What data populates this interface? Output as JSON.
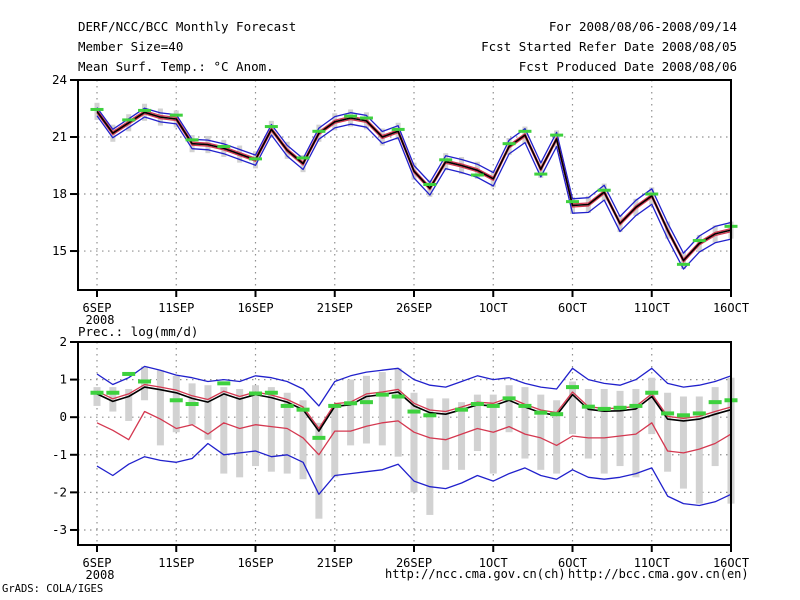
{
  "header": {
    "forecast_title": "DERF/NCC/BCC Monthly Forecast",
    "member_size_label": "Member Size=40",
    "valid_period": "For 2008/08/06-2008/09/14",
    "refer_date": "Fcst Started Refer Date 2008/08/05",
    "produced_date": "Fcst Produced Date 2008/08/06"
  },
  "footer": {
    "url_ch": "http://ncc.cma.gov.cn(ch)",
    "url_en": "http://bcc.cma.gov.cn(en)",
    "grads_credit": "GrADS: COLA/IGES"
  },
  "colors": {
    "mean_line": "#000000",
    "sigma_line": "#d43850",
    "extreme_line": "#2121cc",
    "obs_dash": "#3ed13e",
    "spread_bar": "#d2d2d2",
    "grid": "#909090",
    "frame": "#000000"
  },
  "chart_data": [
    {
      "type": "line",
      "title": "Mean Surf. Temp.: °C Anom.",
      "x_tick_labels": [
        "6SEP",
        "11SEP",
        "16SEP",
        "21SEP",
        "26SEP",
        "1OCT",
        "6OCT",
        "11OCT",
        "16OCT"
      ],
      "x_tick_days": [
        0,
        5,
        10,
        15,
        20,
        25,
        30,
        35,
        40
      ],
      "x_year_label": "2008",
      "y_tick_labels": [
        "24",
        "21",
        "18",
        "15"
      ],
      "y_tick_values": [
        24,
        21,
        18,
        15
      ],
      "grid_y": [
        21,
        18,
        15
      ],
      "ylim": [
        12.95,
        24
      ],
      "days_span": 40,
      "legend_position": "none",
      "series": {
        "mean": [
          22.35,
          21.2,
          21.75,
          22.3,
          22.05,
          21.95,
          20.65,
          20.6,
          20.4,
          20.1,
          19.8,
          21.4,
          20.3,
          19.6,
          21.2,
          21.8,
          22.0,
          21.85,
          21.0,
          21.3,
          19.2,
          18.3,
          19.7,
          19.5,
          19.25,
          18.8,
          20.5,
          21.1,
          19.3,
          20.9,
          17.4,
          17.45,
          18.1,
          16.45,
          17.3,
          17.9,
          16.1,
          14.5,
          15.4,
          15.9,
          16.1
        ],
        "obs": [
          22.45,
          null,
          21.9,
          22.4,
          null,
          22.15,
          20.85,
          null,
          20.5,
          null,
          19.85,
          21.55,
          null,
          19.9,
          21.3,
          null,
          22.1,
          22.0,
          null,
          21.4,
          null,
          18.5,
          19.8,
          null,
          19.0,
          null,
          20.65,
          21.3,
          19.05,
          21.1,
          17.6,
          null,
          18.2,
          null,
          null,
          18.0,
          null,
          14.3,
          15.55,
          null,
          16.3
        ]
      },
      "envelope": {
        "red_offset": 0.08,
        "blue_offset_base": 0.2,
        "blue_offset_growth": 0.005,
        "bar_offset": 0.45
      }
    },
    {
      "type": "line",
      "title": "Prec.: log(mm/d)",
      "x_tick_labels": [
        "6SEP",
        "11SEP",
        "16SEP",
        "21SEP",
        "26SEP",
        "1OCT",
        "6OCT",
        "11OCT",
        "16OCT"
      ],
      "x_tick_days": [
        0,
        5,
        10,
        15,
        20,
        25,
        30,
        35,
        40
      ],
      "x_year_label": "2008",
      "y_tick_labels": [
        "2",
        "1",
        "0",
        "-1",
        "-2",
        "-3"
      ],
      "y_tick_values": [
        2,
        1,
        0,
        -1,
        -2,
        -3
      ],
      "grid_y": [
        1,
        0,
        -1,
        -2,
        -3
      ],
      "ylim": [
        -3.4,
        2
      ],
      "days_span": 40,
      "legend_position": "none",
      "series": {
        "mean": [
          0.62,
          0.42,
          0.55,
          0.8,
          0.73,
          0.65,
          0.5,
          0.4,
          0.62,
          0.48,
          0.6,
          0.52,
          0.4,
          0.2,
          -0.37,
          0.29,
          0.33,
          0.55,
          0.6,
          0.67,
          0.3,
          0.12,
          0.08,
          0.2,
          0.33,
          0.3,
          0.45,
          0.27,
          0.12,
          0.05,
          0.6,
          0.21,
          0.16,
          0.17,
          0.22,
          0.55,
          -0.05,
          -0.1,
          -0.05,
          0.08,
          0.2
        ],
        "plus_sigma": [
          0.69,
          0.49,
          0.62,
          0.87,
          0.8,
          0.72,
          0.57,
          0.47,
          0.69,
          0.55,
          0.67,
          0.59,
          0.47,
          0.27,
          -0.3,
          0.36,
          0.4,
          0.62,
          0.67,
          0.74,
          0.37,
          0.19,
          0.15,
          0.27,
          0.4,
          0.37,
          0.52,
          0.34,
          0.19,
          0.12,
          0.67,
          0.28,
          0.23,
          0.24,
          0.29,
          0.62,
          0.02,
          -0.03,
          0.02,
          0.15,
          0.27
        ],
        "minus_sigma": [
          -0.15,
          -0.35,
          -0.6,
          0.15,
          -0.05,
          -0.3,
          -0.2,
          -0.45,
          -0.15,
          -0.3,
          -0.2,
          -0.25,
          -0.3,
          -0.55,
          -1.0,
          -0.37,
          -0.37,
          -0.24,
          -0.15,
          -0.1,
          -0.4,
          -0.55,
          -0.6,
          -0.45,
          -0.3,
          -0.4,
          -0.25,
          -0.45,
          -0.55,
          -0.75,
          -0.5,
          -0.55,
          -0.55,
          -0.5,
          -0.45,
          -0.15,
          -0.9,
          -0.95,
          -0.85,
          -0.7,
          -0.45
        ],
        "max": [
          1.15,
          0.87,
          1.05,
          1.35,
          1.25,
          1.12,
          1.05,
          0.95,
          1.0,
          0.95,
          1.1,
          1.05,
          0.95,
          0.75,
          0.3,
          0.95,
          1.1,
          1.2,
          1.25,
          1.3,
          1.0,
          0.85,
          0.8,
          0.95,
          1.1,
          1.0,
          1.05,
          0.9,
          0.8,
          0.75,
          1.3,
          1.0,
          0.9,
          0.85,
          1.0,
          1.3,
          0.9,
          0.8,
          0.85,
          0.95,
          1.1
        ],
        "min": [
          -1.3,
          -1.55,
          -1.25,
          -1.05,
          -1.15,
          -1.2,
          -1.1,
          -0.7,
          -1.0,
          -0.95,
          -0.9,
          -1.05,
          -1.0,
          -1.2,
          -2.05,
          -1.55,
          -1.5,
          -1.45,
          -1.4,
          -1.25,
          -1.7,
          -1.85,
          -1.9,
          -1.75,
          -1.55,
          -1.7,
          -1.5,
          -1.35,
          -1.55,
          -1.65,
          -1.4,
          -1.6,
          -1.65,
          -1.6,
          -1.5,
          -1.35,
          -2.1,
          -2.3,
          -2.35,
          -2.25,
          -2.05
        ],
        "obs": [
          0.65,
          0.65,
          1.15,
          0.95,
          null,
          0.45,
          0.35,
          null,
          0.9,
          null,
          0.63,
          0.65,
          0.3,
          0.2,
          -0.55,
          0.3,
          0.37,
          0.4,
          0.6,
          0.55,
          0.15,
          0.05,
          null,
          0.2,
          0.35,
          0.3,
          0.5,
          0.3,
          0.12,
          0.08,
          0.8,
          0.28,
          0.22,
          0.25,
          0.3,
          0.65,
          0.1,
          0.05,
          0.1,
          0.4,
          0.45
        ],
        "bars": [
          [
            0.3,
            0.8
          ],
          [
            0.15,
            0.8
          ],
          [
            -0.1,
            0.75
          ],
          [
            0.45,
            1.35
          ],
          [
            -0.75,
            1.25
          ],
          [
            -0.4,
            1.1
          ],
          [
            -0.2,
            0.9
          ],
          [
            -0.6,
            0.85
          ],
          [
            -1.5,
            0.8
          ],
          [
            -1.6,
            0.75
          ],
          [
            -1.3,
            0.85
          ],
          [
            -1.45,
            0.8
          ],
          [
            -1.5,
            0.65
          ],
          [
            -1.65,
            0.45
          ],
          [
            -2.7,
            -0.15
          ],
          [
            -1.6,
            0.35
          ],
          [
            -0.75,
            1.0
          ],
          [
            -0.7,
            1.1
          ],
          [
            -0.75,
            1.2
          ],
          [
            -1.05,
            1.3
          ],
          [
            -2.0,
            0.65
          ],
          [
            -2.6,
            0.5
          ],
          [
            -1.4,
            0.5
          ],
          [
            -1.4,
            0.4
          ],
          [
            -0.9,
            0.6
          ],
          [
            -1.5,
            0.6
          ],
          [
            -0.4,
            0.85
          ],
          [
            -1.1,
            0.8
          ],
          [
            -1.4,
            0.6
          ],
          [
            -1.5,
            0.45
          ],
          [
            -0.45,
            0.95
          ],
          [
            -1.1,
            0.75
          ],
          [
            -1.5,
            0.75
          ],
          [
            -1.3,
            0.7
          ],
          [
            -1.6,
            0.75
          ],
          [
            -0.45,
            1.05
          ],
          [
            -1.45,
            0.65
          ],
          [
            -1.9,
            0.55
          ],
          [
            -2.3,
            0.55
          ],
          [
            -1.3,
            0.8
          ],
          [
            -2.3,
            1.05
          ]
        ]
      }
    }
  ]
}
